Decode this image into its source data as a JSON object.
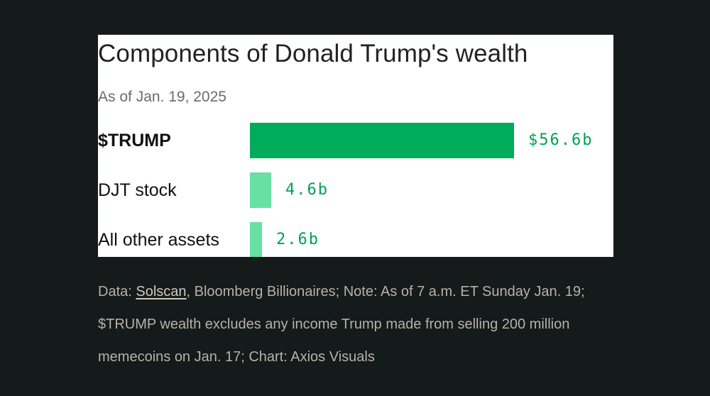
{
  "chart_data": {
    "type": "bar",
    "orientation": "horizontal",
    "title": "Components of Donald Trump's wealth",
    "subtitle": "As of Jan. 19, 2025",
    "categories": [
      "$TRUMP",
      "DJT stock",
      "All other assets"
    ],
    "values": [
      56.6,
      4.6,
      2.6
    ],
    "value_labels": [
      "$56.6b",
      "4.6b",
      "2.6b"
    ],
    "unit": "billion USD",
    "colors": [
      "#00ab5a",
      "#66e0a3",
      "#66e0a3"
    ],
    "label_colors": [
      "#00a255",
      "#00a255",
      "#00a255"
    ],
    "highlighted_category": "$TRUMP",
    "grid": false,
    "legend": "none",
    "xlim": [
      0,
      56.6
    ]
  },
  "footnote": {
    "prefix": "Data: ",
    "link_text": "Solscan",
    "rest": ", Bloomberg Billionaires; Note: As of 7 a.m. ET Sunday Jan. 19; $TRUMP wealth excludes any income Trump made from selling 200 million memecoins on Jan. 17; Chart: Axios Visuals"
  }
}
